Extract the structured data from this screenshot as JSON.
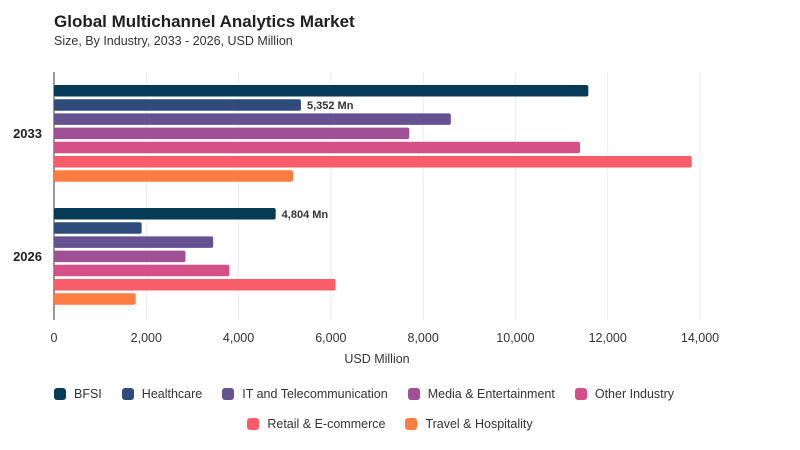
{
  "chart_data": {
    "type": "bar",
    "orientation": "horizontal",
    "title": "Global Multichannel Analytics Market",
    "subtitle": "Size, By Industry, 2033 - 2026, USD Million",
    "xlabel": "USD Million",
    "ylabel": "",
    "xlim": [
      0,
      14000
    ],
    "xticks": [
      "0",
      "2,000",
      "4,000",
      "6,000",
      "8,000",
      "10,000",
      "12,000",
      "14,000"
    ],
    "grid": true,
    "legend_position": "bottom",
    "categories": [
      "2033",
      "2026"
    ],
    "series": [
      {
        "name": "BFSI",
        "color": "#063b55",
        "values": [
          11580,
          4804
        ]
      },
      {
        "name": "Healthcare",
        "color": "#2f4b7c",
        "values": [
          5352,
          1900
        ]
      },
      {
        "name": "IT and Telecommunication",
        "color": "#665191",
        "values": [
          8600,
          3450
        ]
      },
      {
        "name": "Media & Entertainment",
        "color": "#a05195",
        "values": [
          7700,
          2850
        ]
      },
      {
        "name": "Other Industry",
        "color": "#d45087",
        "values": [
          11400,
          3800
        ]
      },
      {
        "name": "Retail & E-commerce",
        "color": "#f95d6a",
        "values": [
          13820,
          6100
        ]
      },
      {
        "name": "Travel & Hospitality",
        "color": "#ff7c43",
        "values": [
          5180,
          1770
        ]
      }
    ],
    "annotations": [
      {
        "category": "2033",
        "series": "Healthcare",
        "text": "5,352 Mn"
      },
      {
        "category": "2026",
        "series": "BFSI",
        "text": "4,804 Mn"
      }
    ]
  }
}
